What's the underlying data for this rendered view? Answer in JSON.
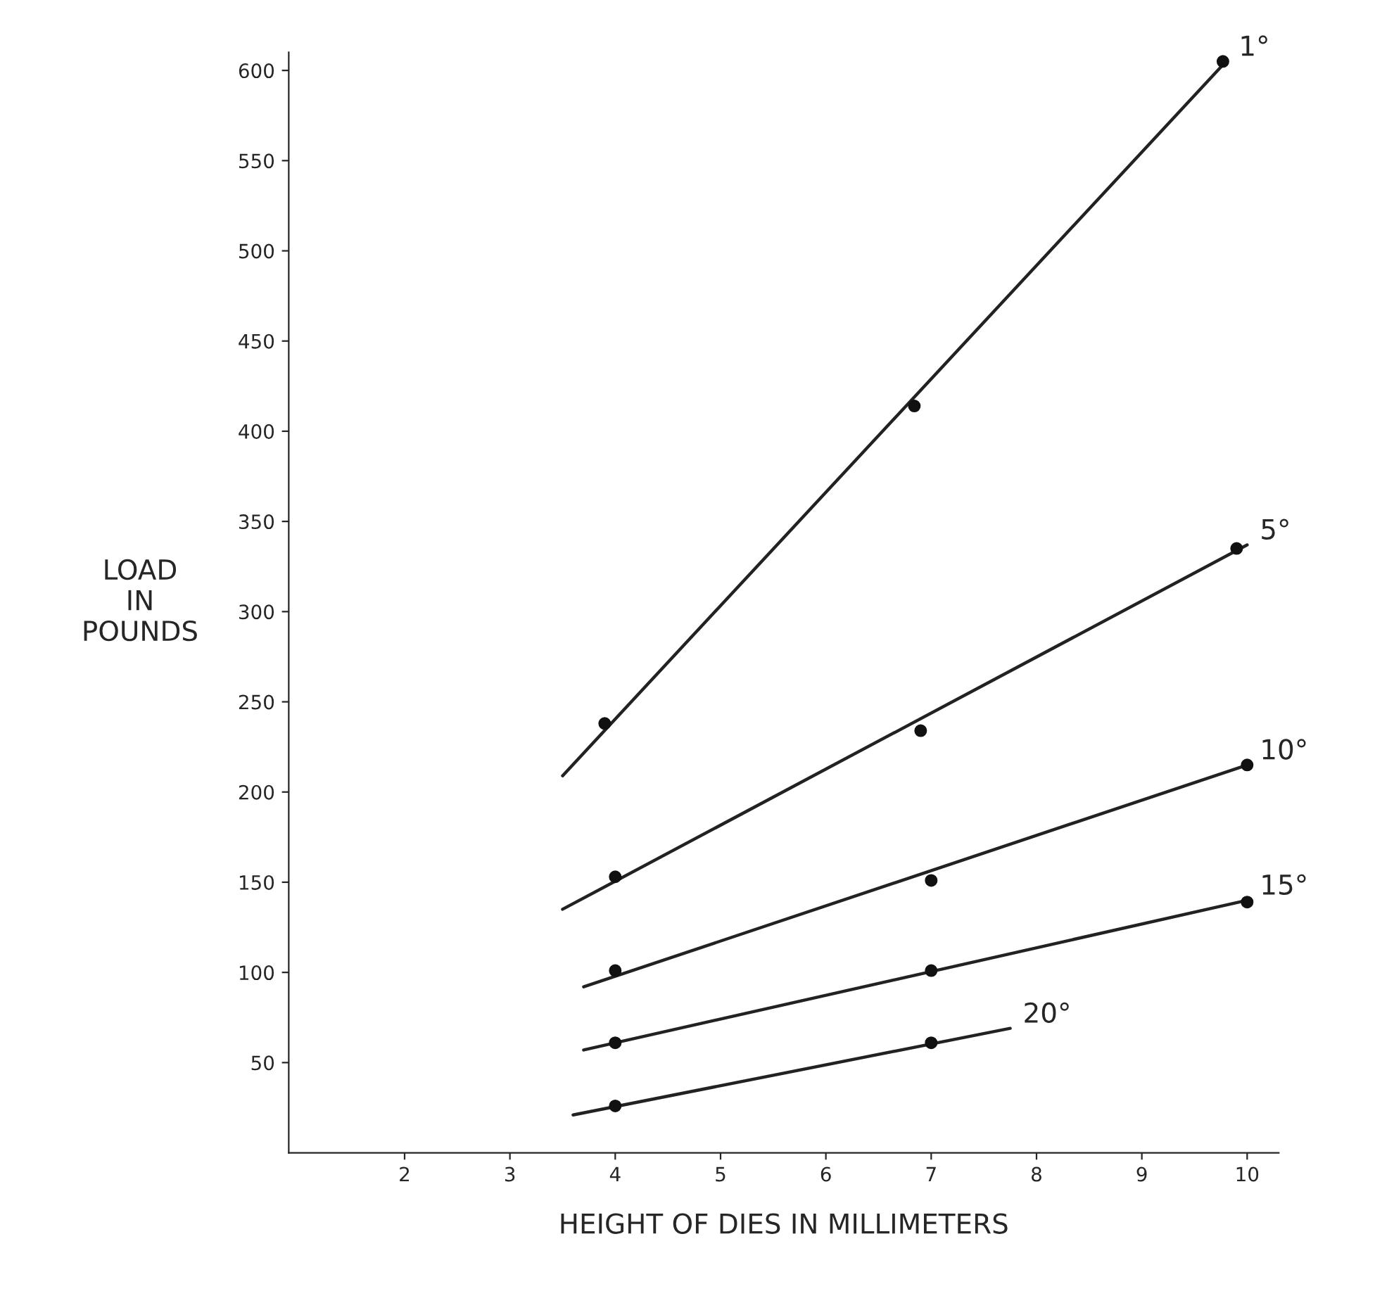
{
  "chart_data": {
    "type": "line",
    "xlabel": "HEIGHT OF DIES IN MILLIMETERS",
    "ylabel": "LOAD\nIN\nPOUNDS",
    "xlim": [
      0.9,
      10.3
    ],
    "ylim": [
      0,
      610
    ],
    "xticks": [
      2,
      3,
      4,
      5,
      6,
      7,
      8,
      9,
      10
    ],
    "yticks": [
      50,
      100,
      150,
      200,
      250,
      300,
      350,
      400,
      450,
      500,
      550,
      600
    ],
    "grid": false,
    "legend": false,
    "series": [
      {
        "name": "1°",
        "color": "#222222",
        "marker": "none",
        "x": [
          3.5,
          9.8
        ],
        "values": [
          209,
          605
        ]
      },
      {
        "type": "scatter",
        "color": "#111111",
        "marker": "circle",
        "x": [
          3.9,
          6.84,
          9.77
        ],
        "values": [
          238,
          414,
          605
        ]
      },
      {
        "name": "5°",
        "color": "#222222",
        "marker": "none",
        "x": [
          3.5,
          10.0
        ],
        "values": [
          135,
          337
        ]
      },
      {
        "type": "scatter",
        "color": "#111111",
        "marker": "circle",
        "x": [
          4,
          6.9,
          9.9
        ],
        "values": [
          153,
          234,
          335
        ]
      },
      {
        "name": "10°",
        "color": "#222222",
        "marker": "none",
        "x": [
          3.7,
          10.0
        ],
        "values": [
          92,
          215
        ]
      },
      {
        "type": "scatter",
        "color": "#111111",
        "marker": "circle",
        "x": [
          4,
          7,
          10
        ],
        "values": [
          101,
          151,
          215
        ]
      },
      {
        "name": "15°",
        "color": "#222222",
        "marker": "none",
        "x": [
          3.7,
          10.0
        ],
        "values": [
          57,
          140
        ]
      },
      {
        "type": "scatter",
        "color": "#111111",
        "marker": "circle",
        "x": [
          4,
          7,
          10
        ],
        "values": [
          61,
          101,
          139
        ]
      },
      {
        "name": "20°",
        "color": "#222222",
        "marker": "none",
        "x": [
          3.6,
          7.75
        ],
        "values": [
          21,
          69
        ]
      },
      {
        "type": "scatter",
        "color": "#111111",
        "marker": "circle",
        "x": [
          4,
          7
        ],
        "values": [
          26,
          61
        ]
      }
    ]
  }
}
